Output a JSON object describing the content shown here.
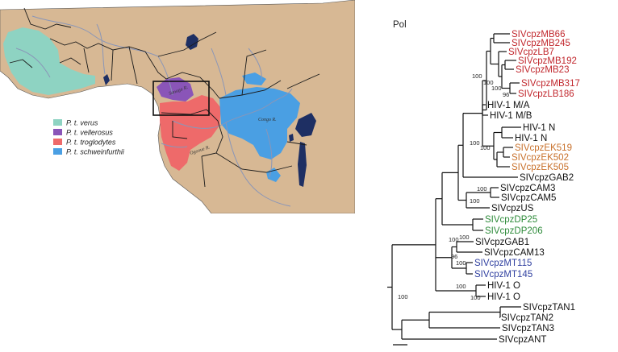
{
  "map": {
    "legend": [
      {
        "label": "P. t. verus",
        "color": "#8ed3c2"
      },
      {
        "label": "P. t. vellerosus",
        "color": "#8a55b8"
      },
      {
        "label": "P. t. troglodytes",
        "color": "#ee6a6a"
      },
      {
        "label": "P. t. schweinfurthii",
        "color": "#4a9fe3"
      }
    ],
    "place_labels": [
      "Sanaga R.",
      "Congo R.",
      "Ogooue R."
    ],
    "colors": {
      "land": "#d7b894",
      "sea": "#ffffff",
      "river": "#8a96b8",
      "lake": "#1e2f63",
      "border": "#1a1a1a"
    }
  },
  "tree": {
    "title": "Pol",
    "leaves": [
      {
        "label": "SIVcpzMB66",
        "color": "#c1272d"
      },
      {
        "label": "SIVcpzMB245",
        "color": "#c1272d"
      },
      {
        "label": "SIVcpzLB7",
        "color": "#c1272d"
      },
      {
        "label": "SIVcpzMB192",
        "color": "#c1272d"
      },
      {
        "label": "SIVcpzMB23",
        "color": "#c1272d"
      },
      {
        "label": "SIVcpzMB317",
        "color": "#c1272d"
      },
      {
        "label": "SIVcpzLB186",
        "color": "#c1272d"
      },
      {
        "label": "HIV-1 M/A",
        "color": "#111111"
      },
      {
        "label": "HIV-1 M/B",
        "color": "#111111"
      },
      {
        "label": "HIV-1 N",
        "color": "#111111"
      },
      {
        "label": "HIV-1 N",
        "color": "#111111"
      },
      {
        "label": "SIVcpzEK519",
        "color": "#c8702a"
      },
      {
        "label": "SIVcpzEK502",
        "color": "#c8702a"
      },
      {
        "label": "SIVcpzEK505",
        "color": "#c8702a"
      },
      {
        "label": "SIVcpzGAB2",
        "color": "#111111"
      },
      {
        "label": "SIVcpzCAM3",
        "color": "#111111"
      },
      {
        "label": "SIVcpzCAM5",
        "color": "#111111"
      },
      {
        "label": "SIVcpzUS",
        "color": "#111111"
      },
      {
        "label": "SIVcpzDP25",
        "color": "#2e8b3a"
      },
      {
        "label": "SIVcpzDP206",
        "color": "#2e8b3a"
      },
      {
        "label": "SIVcpzGAB1",
        "color": "#111111"
      },
      {
        "label": "SIVcpzCAM13",
        "color": "#111111"
      },
      {
        "label": "SIVcpzMT115",
        "color": "#3040a0"
      },
      {
        "label": "SIVcpzMT145",
        "color": "#3040a0"
      },
      {
        "label": "HIV-1 O",
        "color": "#111111"
      },
      {
        "label": "HIV-1 O",
        "color": "#111111"
      },
      {
        "label": "SIVcpzTAN1",
        "color": "#111111"
      },
      {
        "label": "SIVcpzTAN2",
        "color": "#111111"
      },
      {
        "label": "SIVcpzTAN3",
        "color": "#111111"
      },
      {
        "label": "SIVcpzANT",
        "color": "#111111"
      }
    ],
    "bootstrap": [
      "100",
      "100",
      "100",
      "96",
      "100",
      "100",
      "100",
      "100",
      "100",
      "100",
      "96",
      "100",
      "100",
      "100",
      "100"
    ]
  }
}
